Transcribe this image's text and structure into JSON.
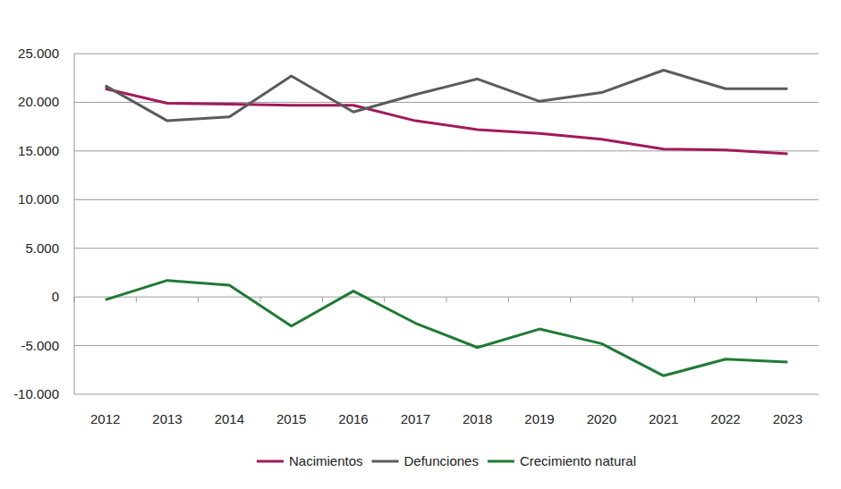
{
  "chart_data": {
    "type": "line",
    "categories": [
      "2012",
      "2013",
      "2014",
      "2015",
      "2016",
      "2017",
      "2018",
      "2019",
      "2020",
      "2021",
      "2022",
      "2023"
    ],
    "series": [
      {
        "name": "Nacimientos",
        "color": "#a3195b",
        "values": [
          21400,
          19900,
          19800,
          19700,
          19700,
          18100,
          17200,
          16800,
          16200,
          15200,
          15100,
          14700
        ]
      },
      {
        "name": "Defunciones",
        "color": "#5b5b5b",
        "values": [
          21700,
          18100,
          18500,
          22700,
          19000,
          20800,
          22400,
          20100,
          21000,
          23300,
          21400,
          21400
        ]
      },
      {
        "name": "Crecimiento natural",
        "color": "#1f7a35",
        "values": [
          -300,
          1700,
          1200,
          -3000,
          600,
          -2700,
          -5200,
          -3300,
          -4800,
          -8100,
          -6400,
          -6700
        ]
      }
    ],
    "ylim": [
      -10000,
      25000
    ],
    "yticks": [
      {
        "value": -10000,
        "label": "-10.000"
      },
      {
        "value": -5000,
        "label": "-5.000"
      },
      0,
      {
        "value": 5000,
        "label": "5.000"
      },
      {
        "value": 10000,
        "label": "10.000"
      },
      {
        "value": 15000,
        "label": "15.000"
      },
      {
        "value": 20000,
        "label": "20.000"
      },
      {
        "value": 25000,
        "label": "25.000"
      }
    ],
    "grid": true,
    "legend": "bottom"
  }
}
